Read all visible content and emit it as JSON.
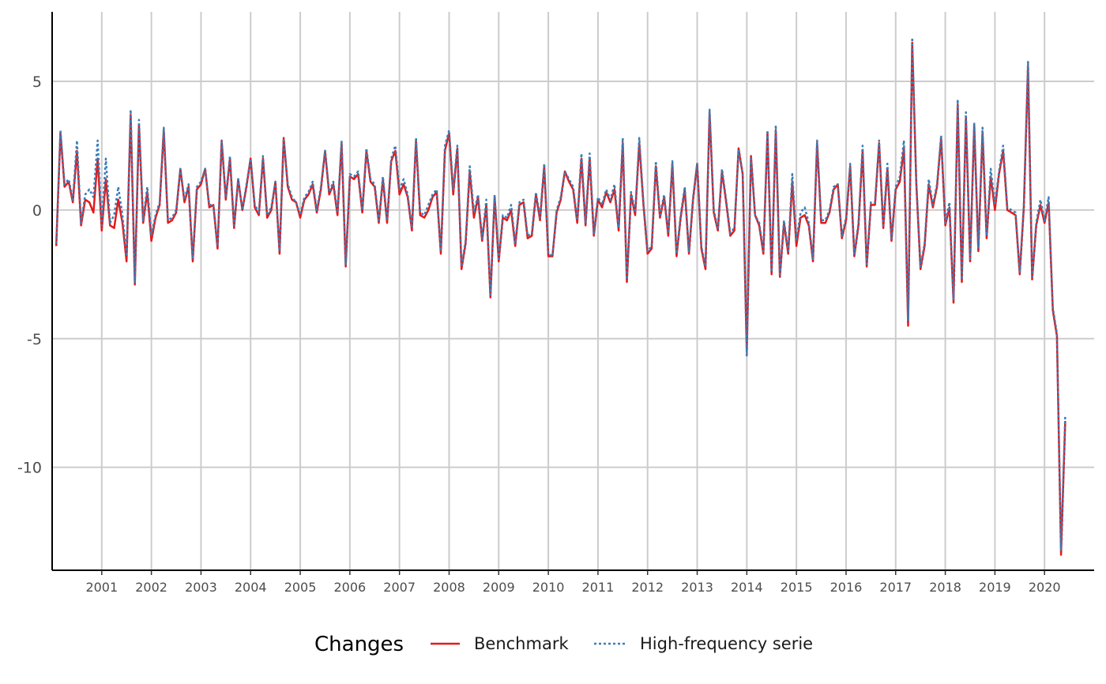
{
  "chart_data": {
    "type": "line",
    "x": [
      "2000-02",
      "2000-03",
      "2000-04",
      "2000-05",
      "2000-06",
      "2000-07",
      "2000-08",
      "2000-09",
      "2000-10",
      "2000-11",
      "2000-12",
      "2001-01",
      "2001-02",
      "2001-03",
      "2001-04",
      "2001-05",
      "2001-06",
      "2001-07",
      "2001-08",
      "2001-09",
      "2001-10",
      "2001-11",
      "2001-12",
      "2002-01",
      "2002-02",
      "2002-03",
      "2002-04",
      "2002-05",
      "2002-06",
      "2002-07",
      "2002-08",
      "2002-09",
      "2002-10",
      "2002-11",
      "2002-12",
      "2003-01",
      "2003-02",
      "2003-03",
      "2003-04",
      "2003-05",
      "2003-06",
      "2003-07",
      "2003-08",
      "2003-09",
      "2003-10",
      "2003-11",
      "2003-12",
      "2004-01",
      "2004-02",
      "2004-03",
      "2004-04",
      "2004-05",
      "2004-06",
      "2004-07",
      "2004-08",
      "2004-09",
      "2004-10",
      "2004-11",
      "2004-12",
      "2005-01",
      "2005-02",
      "2005-03",
      "2005-04",
      "2005-05",
      "2005-06",
      "2005-07",
      "2005-08",
      "2005-09",
      "2005-10",
      "2005-11",
      "2005-12",
      "2006-01",
      "2006-02",
      "2006-03",
      "2006-04",
      "2006-05",
      "2006-06",
      "2006-07",
      "2006-08",
      "2006-09",
      "2006-10",
      "2006-11",
      "2006-12",
      "2007-01",
      "2007-02",
      "2007-03",
      "2007-04",
      "2007-05",
      "2007-06",
      "2007-07",
      "2007-08",
      "2007-09",
      "2007-10",
      "2007-11",
      "2007-12",
      "2008-01",
      "2008-02",
      "2008-03",
      "2008-04",
      "2008-05",
      "2008-06",
      "2008-07",
      "2008-08",
      "2008-09",
      "2008-10",
      "2008-11",
      "2008-12",
      "2009-01",
      "2009-02",
      "2009-03",
      "2009-04",
      "2009-05",
      "2009-06",
      "2009-07",
      "2009-08",
      "2009-09",
      "2009-10",
      "2009-11",
      "2009-12",
      "2010-01",
      "2010-02",
      "2010-03",
      "2010-04",
      "2010-05",
      "2010-06",
      "2010-07",
      "2010-08",
      "2010-09",
      "2010-10",
      "2010-11",
      "2010-12",
      "2011-01",
      "2011-02",
      "2011-03",
      "2011-04",
      "2011-05",
      "2011-06",
      "2011-07",
      "2011-08",
      "2011-09",
      "2011-10",
      "2011-11",
      "2011-12",
      "2012-01",
      "2012-02",
      "2012-03",
      "2012-04",
      "2012-05",
      "2012-06",
      "2012-07",
      "2012-08",
      "2012-09",
      "2012-10",
      "2012-11",
      "2012-12",
      "2013-01",
      "2013-02",
      "2013-03",
      "2013-04",
      "2013-05",
      "2013-06",
      "2013-07",
      "2013-08",
      "2013-09",
      "2013-10",
      "2013-11",
      "2013-12",
      "2014-01",
      "2014-02",
      "2014-03",
      "2014-04",
      "2014-05",
      "2014-06",
      "2014-07",
      "2014-08",
      "2014-09",
      "2014-10",
      "2014-11",
      "2014-12",
      "2015-01",
      "2015-02",
      "2015-03",
      "2015-04",
      "2015-05",
      "2015-06",
      "2015-07",
      "2015-08",
      "2015-09",
      "2015-10",
      "2015-11",
      "2015-12",
      "2016-01",
      "2016-02",
      "2016-03",
      "2016-04",
      "2016-05",
      "2016-06",
      "2016-07",
      "2016-08",
      "2016-09",
      "2016-10",
      "2016-11",
      "2016-12",
      "2017-01",
      "2017-02",
      "2017-03",
      "2017-04",
      "2017-05",
      "2017-06",
      "2017-07",
      "2017-08",
      "2017-09",
      "2017-10",
      "2017-11",
      "2017-12",
      "2018-01",
      "2018-02",
      "2018-03",
      "2018-04",
      "2018-05",
      "2018-06",
      "2018-07",
      "2018-08",
      "2018-09",
      "2018-10",
      "2018-11",
      "2018-12",
      "2019-01",
      "2019-02",
      "2019-03",
      "2019-04",
      "2019-05",
      "2019-06",
      "2019-07",
      "2019-08",
      "2019-09",
      "2019-10",
      "2019-11",
      "2019-12",
      "2020-01",
      "2020-02",
      "2020-03",
      "2020-04",
      "2020-05",
      "2020-06"
    ],
    "series": [
      {
        "name": "Benchmark",
        "color": "#e41a1c",
        "dash": "solid",
        "values": [
          -1.4,
          3.0,
          0.9,
          1.1,
          0.3,
          2.3,
          -0.6,
          0.4,
          0.3,
          -0.1,
          2.0,
          -0.8,
          1.2,
          -0.6,
          -0.7,
          0.4,
          -0.5,
          -2.0,
          3.7,
          -2.9,
          3.3,
          -0.5,
          0.7,
          -1.2,
          -0.3,
          0.2,
          3.1,
          -0.5,
          -0.4,
          -0.1,
          1.6,
          0.3,
          0.9,
          -2.0,
          0.8,
          1.0,
          1.6,
          0.1,
          0.2,
          -1.5,
          2.7,
          0.4,
          2.0,
          -0.7,
          1.2,
          0.0,
          0.9,
          2.0,
          0.1,
          -0.2,
          2.0,
          -0.3,
          0.0,
          1.1,
          -1.7,
          2.8,
          0.9,
          0.4,
          0.3,
          -0.3,
          0.4,
          0.6,
          1.0,
          -0.1,
          0.8,
          2.3,
          0.6,
          1.0,
          -0.2,
          2.6,
          -2.2,
          1.3,
          1.2,
          1.4,
          -0.1,
          2.3,
          1.1,
          0.9,
          -0.5,
          1.2,
          -0.5,
          1.9,
          2.3,
          0.6,
          1.0,
          0.5,
          -0.8,
          2.7,
          -0.2,
          -0.3,
          0.0,
          0.5,
          0.7,
          -1.7,
          2.3,
          3.0,
          0.6,
          2.4,
          -2.3,
          -1.3,
          1.5,
          -0.3,
          0.5,
          -1.2,
          0.2,
          -3.4,
          0.5,
          -2.0,
          -0.3,
          -0.4,
          0.0,
          -1.4,
          0.2,
          0.3,
          -1.1,
          -1.0,
          0.6,
          -0.4,
          1.7,
          -1.8,
          -1.8,
          -0.1,
          0.4,
          1.5,
          1.1,
          0.8,
          -0.5,
          2.0,
          -0.6,
          2.0,
          -1.0,
          0.4,
          0.1,
          0.7,
          0.3,
          0.8,
          -0.8,
          2.6,
          -2.8,
          0.6,
          -0.2,
          2.6,
          0.2,
          -1.7,
          -1.5,
          1.7,
          -0.3,
          0.5,
          -1.0,
          1.8,
          -1.8,
          -0.3,
          0.8,
          -1.7,
          0.4,
          1.8,
          -1.5,
          -2.3,
          3.8,
          -0.1,
          -0.8,
          1.5,
          0.3,
          -1.0,
          -0.8,
          2.4,
          1.4,
          -5.5,
          2.1,
          -0.2,
          -0.6,
          -1.7,
          3.0,
          -2.5,
          3.1,
          -2.6,
          -0.5,
          -1.7,
          1.1,
          -1.4,
          -0.3,
          -0.2,
          -0.6,
          -2.0,
          2.6,
          -0.5,
          -0.5,
          -0.1,
          0.8,
          1.0,
          -1.1,
          -0.4,
          1.7,
          -1.8,
          -0.6,
          2.3,
          -2.2,
          0.2,
          0.2,
          2.6,
          -0.7,
          1.6,
          -1.2,
          0.8,
          1.1,
          2.4,
          -4.5,
          6.5,
          1.0,
          -2.3,
          -1.4,
          1.0,
          0.1,
          0.9,
          2.8,
          -0.6,
          0.1,
          -3.6,
          4.1,
          -2.8,
          3.6,
          -2.0,
          3.3,
          -1.6,
          3.0,
          -1.1,
          1.3,
          0.0,
          1.4,
          2.3,
          0.0,
          -0.1,
          -0.2,
          -2.5,
          0.1,
          5.6,
          -2.7,
          -0.6,
          0.2,
          -0.5,
          0.3,
          -3.9,
          -4.9,
          -13.4,
          -8.2
        ]
      },
      {
        "name": "High-frequency serie",
        "color": "#377eb8",
        "dash": "dotted",
        "values": [
          -1.3,
          3.1,
          1.0,
          1.2,
          0.4,
          2.7,
          -0.5,
          0.6,
          0.8,
          0.5,
          2.7,
          -0.6,
          2.0,
          -0.5,
          -0.2,
          0.9,
          -0.2,
          -1.8,
          3.9,
          -2.8,
          3.5,
          -0.4,
          0.9,
          -1.0,
          -0.2,
          0.3,
          3.2,
          -0.4,
          -0.3,
          0.0,
          1.6,
          0.4,
          1.0,
          -1.9,
          0.9,
          1.1,
          1.6,
          0.2,
          0.2,
          -1.4,
          2.7,
          0.5,
          2.1,
          -0.6,
          1.2,
          0.0,
          1.0,
          2.0,
          0.2,
          -0.1,
          2.1,
          -0.2,
          0.1,
          1.1,
          -1.6,
          2.8,
          1.0,
          0.5,
          0.3,
          -0.2,
          0.5,
          0.7,
          1.1,
          0.0,
          0.9,
          2.3,
          0.7,
          1.1,
          -0.1,
          2.7,
          -2.1,
          1.4,
          1.3,
          1.5,
          0.0,
          2.4,
          1.2,
          1.0,
          -0.4,
          1.3,
          -0.4,
          2.0,
          2.5,
          0.8,
          1.2,
          0.6,
          -0.7,
          2.8,
          -0.1,
          -0.2,
          0.2,
          0.6,
          0.8,
          -1.6,
          2.5,
          3.1,
          0.8,
          2.5,
          -2.2,
          -1.2,
          1.7,
          -0.1,
          0.6,
          -1.1,
          0.4,
          -3.3,
          0.6,
          -1.9,
          -0.2,
          -0.3,
          0.2,
          -1.3,
          0.3,
          0.4,
          -1.0,
          -0.9,
          0.7,
          -0.3,
          1.8,
          -1.7,
          -1.8,
          0.0,
          0.5,
          1.5,
          1.2,
          0.9,
          -0.4,
          2.2,
          -0.5,
          2.2,
          -0.9,
          0.5,
          0.2,
          0.8,
          0.4,
          1.0,
          -0.7,
          2.8,
          -2.7,
          0.7,
          -0.1,
          2.8,
          0.3,
          -1.6,
          -1.4,
          1.9,
          -0.2,
          0.6,
          -0.9,
          1.9,
          -1.7,
          -0.2,
          0.9,
          -1.6,
          0.5,
          1.8,
          -1.4,
          -2.2,
          3.9,
          0.0,
          -0.7,
          1.6,
          0.4,
          -0.9,
          -0.7,
          2.3,
          1.4,
          -5.7,
          2.0,
          -0.2,
          -0.5,
          -1.6,
          3.1,
          -2.4,
          3.3,
          -2.5,
          -0.4,
          -1.6,
          1.4,
          -1.2,
          -0.1,
          0.1,
          -0.5,
          -1.9,
          2.7,
          -0.4,
          -0.4,
          0.0,
          0.9,
          1.0,
          -1.0,
          -0.3,
          1.8,
          -1.7,
          -0.5,
          2.5,
          -2.1,
          0.3,
          0.3,
          2.7,
          -0.6,
          1.8,
          -1.1,
          0.9,
          1.3,
          2.7,
          -4.3,
          6.7,
          1.1,
          -2.2,
          -1.3,
          1.2,
          0.2,
          1.0,
          2.9,
          -0.5,
          0.3,
          -3.5,
          4.3,
          -2.7,
          3.8,
          -1.9,
          3.4,
          -1.5,
          3.2,
          -1.0,
          1.6,
          0.2,
          1.5,
          2.5,
          0.1,
          0.0,
          -0.1,
          -2.4,
          0.2,
          5.8,
          -2.6,
          -0.5,
          0.4,
          -0.4,
          0.5,
          -3.8,
          -4.8,
          -13.2,
          -8.0
        ]
      }
    ],
    "x_tick_labels": [
      "2001",
      "2002",
      "2003",
      "2004",
      "2005",
      "2006",
      "2007",
      "2008",
      "2009",
      "2010",
      "2011",
      "2012",
      "2013",
      "2014",
      "2015",
      "2016",
      "2017",
      "2018",
      "2019",
      "2020"
    ],
    "y_ticks": [
      -10,
      -5,
      0,
      5
    ],
    "y_tick_labels": [
      "-10",
      "-5",
      "0",
      "5"
    ],
    "ylim": [
      -14.0,
      7.7
    ],
    "xlim": [
      "2000-01",
      "2021-01"
    ],
    "title": "",
    "xlabel": "",
    "ylabel": "",
    "grid": true,
    "legend": {
      "title": "Changes",
      "position": "bottom"
    }
  }
}
